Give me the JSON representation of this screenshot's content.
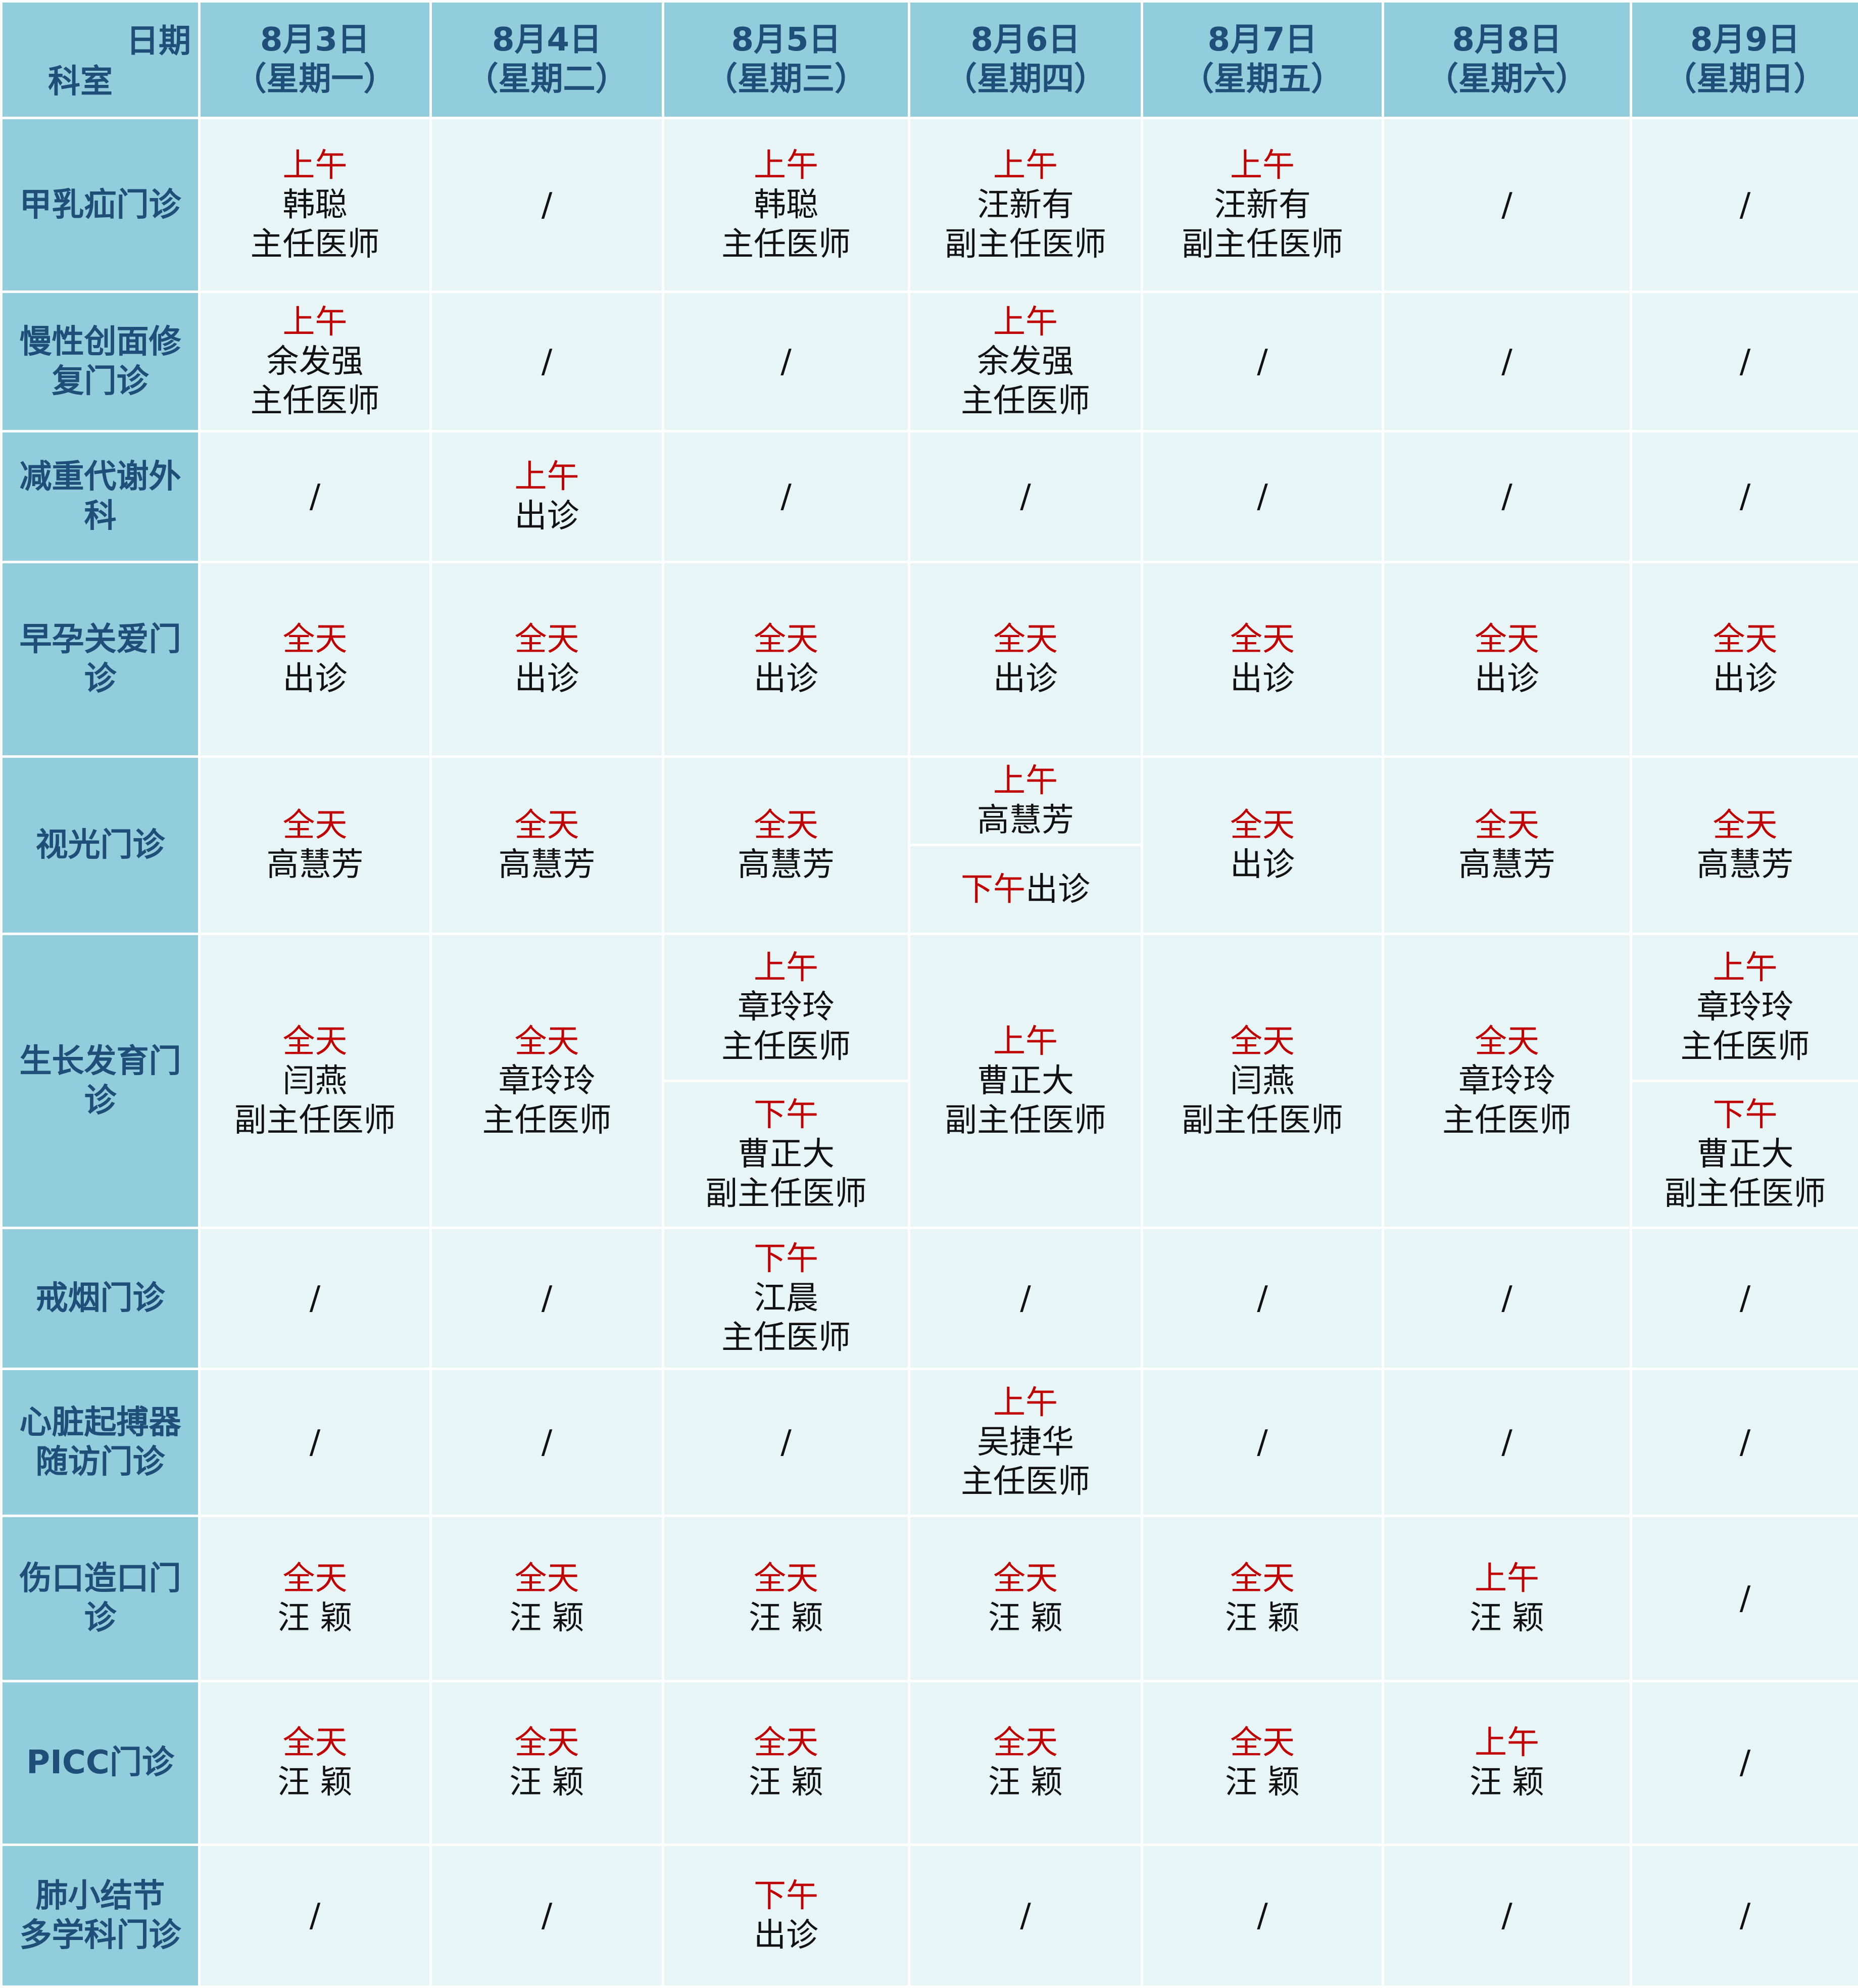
{
  "header": {
    "corner_date": "日期",
    "corner_dept": "科室",
    "days": [
      {
        "date": "8月3日",
        "weekday": "（星期一）"
      },
      {
        "date": "8月4日",
        "weekday": "（星期二）"
      },
      {
        "date": "8月5日",
        "weekday": "（星期三）"
      },
      {
        "date": "8月6日",
        "weekday": "（星期四）"
      },
      {
        "date": "8月7日",
        "weekday": "（星期五）"
      },
      {
        "date": "8月8日",
        "weekday": "（星期六）"
      },
      {
        "date": "8月9日",
        "weekday": "（星期日）"
      }
    ]
  },
  "departments": [
    {
      "name": [
        "甲乳疝门诊"
      ]
    },
    {
      "name": [
        "慢性创面修",
        "复门诊"
      ]
    },
    {
      "name": [
        "减重代谢外",
        "科"
      ]
    },
    {
      "name": [
        "早孕关爱门",
        "诊"
      ]
    },
    {
      "name": [
        "视光门诊"
      ]
    },
    {
      "name": [
        "生长发育门",
        "诊"
      ]
    },
    {
      "name": [
        "戒烟门诊"
      ]
    },
    {
      "name": [
        "心脏起搏器",
        "随访门诊"
      ]
    },
    {
      "name": [
        "伤口造口门",
        "诊"
      ]
    },
    {
      "name": [
        "PICC门诊"
      ]
    },
    {
      "name": [
        "肺小结节",
        "多学科门诊"
      ]
    }
  ],
  "schedule": {
    "r1": [
      {
        "time": "上午",
        "doctor": "韩聪",
        "title": "主任医师"
      },
      {
        "empty": "/"
      },
      {
        "time": "上午",
        "doctor": "韩聪",
        "title": "主任医师"
      },
      {
        "time": "上午",
        "doctor": "汪新有",
        "title": "副主任医师"
      },
      {
        "time": "上午",
        "doctor": "汪新有",
        "title": "副主任医师"
      },
      {
        "empty": "/"
      },
      {
        "empty": "/"
      }
    ],
    "r2": [
      {
        "time": "上午",
        "doctor": "余发强",
        "title": "主任医师"
      },
      {
        "empty": "/"
      },
      {
        "empty": "/"
      },
      {
        "time": "上午",
        "doctor": "余发强",
        "title": "主任医师"
      },
      {
        "empty": "/"
      },
      {
        "empty": "/"
      },
      {
        "empty": "/"
      }
    ],
    "r3": [
      {
        "empty": "/"
      },
      {
        "time": "上午",
        "doctor": "出诊"
      },
      {
        "empty": "/"
      },
      {
        "empty": "/"
      },
      {
        "empty": "/"
      },
      {
        "empty": "/"
      },
      {
        "empty": "/"
      }
    ],
    "r4": [
      {
        "time": "全天",
        "doctor": "出诊"
      },
      {
        "time": "全天",
        "doctor": "出诊"
      },
      {
        "time": "全天",
        "doctor": "出诊"
      },
      {
        "time": "全天",
        "doctor": "出诊"
      },
      {
        "time": "全天",
        "doctor": "出诊"
      },
      {
        "time": "全天",
        "doctor": "出诊"
      },
      {
        "time": "全天",
        "doctor": "出诊"
      }
    ],
    "r5": [
      {
        "time": "全天",
        "doctor": "高慧芳"
      },
      {
        "time": "全天",
        "doctor": "高慧芳"
      },
      {
        "time": "全天",
        "doctor": "高慧芳"
      },
      {
        "am": {
          "time": "上午",
          "doctor": "高慧芳"
        },
        "pm": {
          "time": "下午",
          "doctor": "出诊"
        }
      },
      {
        "time": "全天",
        "doctor": "出诊"
      },
      {
        "time": "全天",
        "doctor": "高慧芳"
      },
      {
        "time": "全天",
        "doctor": "高慧芳"
      }
    ],
    "r6": [
      {
        "time": "全天",
        "doctor": "闫燕",
        "title": "副主任医师"
      },
      {
        "time": "全天",
        "doctor": "章玲玲",
        "title": "主任医师"
      },
      {
        "am": {
          "time": "上午",
          "doctor": "章玲玲",
          "title": "主任医师"
        },
        "pm": {
          "time": "下午",
          "doctor": "曹正大",
          "title": "副主任医师"
        }
      },
      {
        "time": "上午",
        "doctor": "曹正大",
        "title": "副主任医师"
      },
      {
        "time": "全天",
        "doctor": "闫燕",
        "title": "副主任医师"
      },
      {
        "time": "全天",
        "doctor": "章玲玲",
        "title": "主任医师"
      },
      {
        "am": {
          "time": "上午",
          "doctor": "章玲玲",
          "title": "主任医师"
        },
        "pm": {
          "time": "下午",
          "doctor": "曹正大",
          "title": "副主任医师"
        }
      }
    ],
    "r7": [
      {
        "empty": "/"
      },
      {
        "empty": "/"
      },
      {
        "time": "下午",
        "doctor": "江晨",
        "title": "主任医师"
      },
      {
        "empty": "/"
      },
      {
        "empty": "/"
      },
      {
        "empty": "/"
      },
      {
        "empty": "/"
      }
    ],
    "r8": [
      {
        "empty": "/"
      },
      {
        "empty": "/"
      },
      {
        "empty": "/"
      },
      {
        "time": "上午",
        "doctor": "吴捷华",
        "title": "主任医师"
      },
      {
        "empty": "/"
      },
      {
        "empty": "/"
      },
      {
        "empty": "/"
      }
    ],
    "r9": [
      {
        "time": "全天",
        "doctor": "汪 颖"
      },
      {
        "time": "全天",
        "doctor": "汪 颖"
      },
      {
        "time": "全天",
        "doctor": "汪 颖"
      },
      {
        "time": "全天",
        "doctor": "汪 颖"
      },
      {
        "time": "全天",
        "doctor": "汪 颖"
      },
      {
        "time": "上午",
        "doctor": "汪 颖"
      },
      {
        "empty": "/"
      }
    ],
    "r10": [
      {
        "time": "全天",
        "doctor": "汪 颖"
      },
      {
        "time": "全天",
        "doctor": "汪 颖"
      },
      {
        "time": "全天",
        "doctor": "汪 颖"
      },
      {
        "time": "全天",
        "doctor": "汪 颖"
      },
      {
        "time": "全天",
        "doctor": "汪 颖"
      },
      {
        "time": "上午",
        "doctor": "汪 颖"
      },
      {
        "empty": "/"
      }
    ],
    "r11": [
      {
        "empty": "/"
      },
      {
        "empty": "/"
      },
      {
        "time": "下午",
        "doctor": "出诊"
      },
      {
        "empty": "/"
      },
      {
        "empty": "/"
      },
      {
        "empty": "/"
      },
      {
        "empty": "/"
      }
    ]
  }
}
